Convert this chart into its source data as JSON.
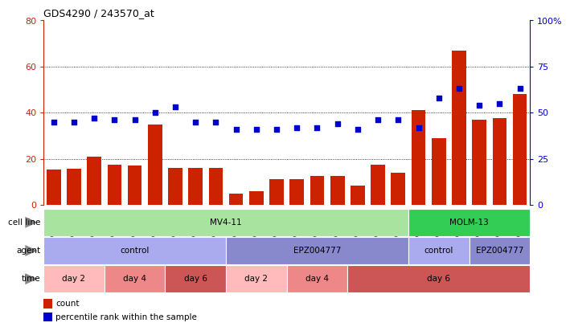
{
  "title": "GDS4290 / 243570_at",
  "samples": [
    "GSM739151",
    "GSM739152",
    "GSM739153",
    "GSM739157",
    "GSM739158",
    "GSM739159",
    "GSM739163",
    "GSM739164",
    "GSM739165",
    "GSM739148",
    "GSM739149",
    "GSM739150",
    "GSM739154",
    "GSM739155",
    "GSM739156",
    "GSM739160",
    "GSM739161",
    "GSM739162",
    "GSM739169",
    "GSM739170",
    "GSM739171",
    "GSM739166",
    "GSM739167",
    "GSM739168"
  ],
  "counts": [
    15.5,
    15.8,
    21.0,
    17.5,
    17.0,
    35.0,
    16.0,
    16.0,
    16.0,
    5.0,
    6.0,
    11.0,
    11.0,
    12.5,
    12.5,
    8.5,
    17.5,
    14.0,
    41.0,
    29.0,
    67.0,
    37.0,
    37.5,
    48.0
  ],
  "percentiles": [
    45,
    45,
    47,
    46,
    46,
    50,
    53,
    45,
    45,
    41,
    41,
    41,
    42,
    42,
    44,
    41,
    46,
    46,
    42,
    58,
    63,
    54,
    55,
    63
  ],
  "bar_color": "#cc2200",
  "dot_color": "#0000cc",
  "ylim_left": [
    0,
    80
  ],
  "ylim_right": [
    0,
    100
  ],
  "yticks_left": [
    0,
    20,
    40,
    60,
    80
  ],
  "yticks_right": [
    0,
    25,
    50,
    75,
    100
  ],
  "grid_values": [
    20,
    40,
    60
  ],
  "cell_line_blocks": [
    {
      "label": "MV4-11",
      "start": 0,
      "end": 18,
      "color": "#a8e4a0"
    },
    {
      "label": "MOLM-13",
      "start": 18,
      "end": 24,
      "color": "#33cc55"
    }
  ],
  "agent_blocks": [
    {
      "label": "control",
      "start": 0,
      "end": 9,
      "color": "#aaaaee"
    },
    {
      "label": "EPZ004777",
      "start": 9,
      "end": 18,
      "color": "#8888cc"
    },
    {
      "label": "control",
      "start": 18,
      "end": 21,
      "color": "#aaaaee"
    },
    {
      "label": "EPZ004777",
      "start": 21,
      "end": 24,
      "color": "#8888cc"
    }
  ],
  "time_blocks": [
    {
      "label": "day 2",
      "start": 0,
      "end": 3,
      "color": "#ffbbbb"
    },
    {
      "label": "day 4",
      "start": 3,
      "end": 6,
      "color": "#ee8888"
    },
    {
      "label": "day 6",
      "start": 6,
      "end": 9,
      "color": "#cc5555"
    },
    {
      "label": "day 2",
      "start": 9,
      "end": 12,
      "color": "#ffbbbb"
    },
    {
      "label": "day 4",
      "start": 12,
      "end": 15,
      "color": "#ee8888"
    },
    {
      "label": "day 6",
      "start": 15,
      "end": 24,
      "color": "#cc5555"
    }
  ],
  "background_color": "#ffffff",
  "plot_bg": "#ffffff",
  "label_color_left": "#cc2200",
  "label_color_right": "#0000cc",
  "arrow_color": "#888888"
}
